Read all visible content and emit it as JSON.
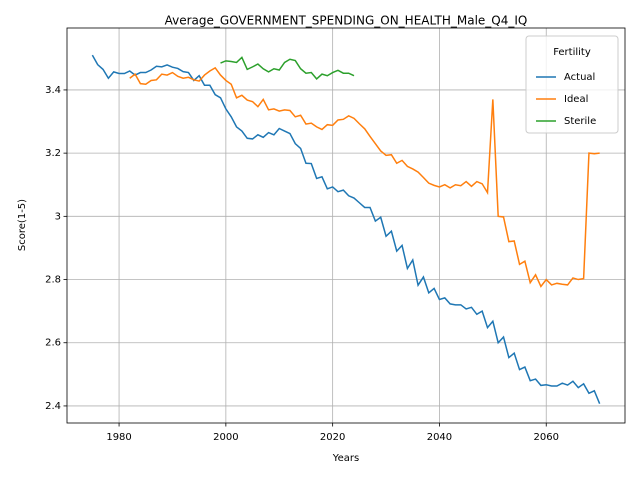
{
  "chart_data": {
    "type": "line",
    "title": "Average_GOVERNMENT_SPENDING_ON_HEALTH_Male_Q4_IQ",
    "x_label": "Years",
    "y_label": "Score(1-5)",
    "x": [
      1975,
      1976,
      1977,
      1978,
      1979,
      1980,
      1981,
      1982,
      1983,
      1984,
      1985,
      1986,
      1987,
      1988,
      1989,
      1990,
      1991,
      1992,
      1993,
      1994,
      1995,
      1996,
      1997,
      1998,
      1999,
      2000,
      2001,
      2002,
      2003,
      2004,
      2005,
      2006,
      2007,
      2008,
      2009,
      2010,
      2011,
      2012,
      2013,
      2014,
      2015,
      2016,
      2017,
      2018,
      2019,
      2020,
      2021,
      2022,
      2023,
      2024,
      2025,
      2026,
      2027,
      2028,
      2029,
      2030,
      2031,
      2032,
      2033,
      2034,
      2035,
      2036,
      2037,
      2038,
      2039,
      2040,
      2041,
      2042,
      2043,
      2044,
      2045,
      2046,
      2047,
      2048,
      2049,
      2050,
      2051,
      2052,
      2053,
      2054,
      2055,
      2056,
      2057,
      2058,
      2059,
      2060,
      2061,
      2062,
      2063,
      2064,
      2065,
      2066,
      2067,
      2068,
      2069,
      2070
    ],
    "series": [
      {
        "name": "Actual",
        "color": "#1f77b4",
        "values": [
          3.51,
          3.48,
          3.465,
          3.437,
          3.457,
          3.452,
          3.452,
          3.46,
          3.447,
          3.455,
          3.455,
          3.463,
          3.475,
          3.473,
          3.479,
          3.472,
          3.468,
          3.458,
          3.455,
          3.43,
          3.445,
          3.415,
          3.415,
          3.385,
          3.375,
          3.34,
          3.315,
          3.283,
          3.27,
          3.247,
          3.245,
          3.258,
          3.25,
          3.265,
          3.258,
          3.278,
          3.27,
          3.262,
          3.23,
          3.215,
          3.168,
          3.167,
          3.12,
          3.125,
          3.087,
          3.093,
          3.078,
          3.083,
          3.065,
          3.058,
          3.043,
          3.028,
          3.028,
          2.985,
          2.997,
          2.937,
          2.953,
          2.89,
          2.908,
          2.835,
          2.862,
          2.782,
          2.808,
          2.758,
          2.772,
          2.737,
          2.742,
          2.723,
          2.72,
          2.72,
          2.707,
          2.712,
          2.69,
          2.7,
          2.648,
          2.668,
          2.6,
          2.618,
          2.553,
          2.567,
          2.515,
          2.523,
          2.48,
          2.485,
          2.465,
          2.467,
          2.463,
          2.463,
          2.472,
          2.466,
          2.478,
          2.458,
          2.47,
          2.44,
          2.448,
          2.407
        ]
      },
      {
        "name": "Ideal",
        "color": "#ff7f0e",
        "values": [
          null,
          null,
          null,
          null,
          null,
          null,
          null,
          3.437,
          3.45,
          3.42,
          3.418,
          3.43,
          3.432,
          3.45,
          3.447,
          3.455,
          3.443,
          3.437,
          3.44,
          3.432,
          3.428,
          3.447,
          3.46,
          3.47,
          3.447,
          3.43,
          3.418,
          3.375,
          3.383,
          3.368,
          3.363,
          3.347,
          3.37,
          3.337,
          3.34,
          3.333,
          3.337,
          3.335,
          3.315,
          3.32,
          3.292,
          3.295,
          3.283,
          3.275,
          3.29,
          3.288,
          3.305,
          3.307,
          3.318,
          3.31,
          3.293,
          3.277,
          3.253,
          3.23,
          3.207,
          3.193,
          3.195,
          3.168,
          3.177,
          3.158,
          3.15,
          3.14,
          3.123,
          3.105,
          3.098,
          3.093,
          3.1,
          3.09,
          3.1,
          3.097,
          3.11,
          3.095,
          3.11,
          3.103,
          3.075,
          3.37,
          3.0,
          2.998,
          2.92,
          2.922,
          2.848,
          2.858,
          2.79,
          2.815,
          2.778,
          2.8,
          2.783,
          2.788,
          2.785,
          2.783,
          2.805,
          2.8,
          2.803,
          3.2,
          3.198,
          3.2
        ]
      },
      {
        "name": "Sterile",
        "color": "#2ca02c",
        "values": [
          null,
          null,
          null,
          null,
          null,
          null,
          null,
          null,
          null,
          null,
          null,
          null,
          null,
          null,
          null,
          null,
          null,
          null,
          null,
          null,
          null,
          null,
          null,
          null,
          3.485,
          3.492,
          3.49,
          3.487,
          3.503,
          3.465,
          3.473,
          3.482,
          3.467,
          3.457,
          3.467,
          3.463,
          3.487,
          3.497,
          3.493,
          3.467,
          3.453,
          3.455,
          3.435,
          3.45,
          3.445,
          3.455,
          3.462,
          3.453,
          3.453,
          3.445,
          null,
          null,
          null,
          null,
          null,
          null,
          null,
          null,
          null,
          null,
          null,
          null,
          null,
          null,
          null,
          null,
          null,
          null,
          null,
          null,
          null,
          null,
          null,
          null,
          null,
          null,
          null,
          null,
          null,
          null,
          null,
          null,
          null,
          null,
          null,
          null,
          null,
          null,
          null,
          null,
          null,
          null,
          null,
          null,
          null,
          null
        ]
      }
    ],
    "xlim": [
      1970.25,
      2074.75
    ],
    "ylim": [
      2.346,
      3.596
    ],
    "xticks": [
      1980,
      2000,
      2020,
      2040,
      2060
    ],
    "yticks": [
      2.4,
      2.6,
      2.8,
      3.0,
      3.2,
      3.4
    ],
    "grid": true,
    "legend_title": "Fertility",
    "legend_position": "upper right"
  }
}
